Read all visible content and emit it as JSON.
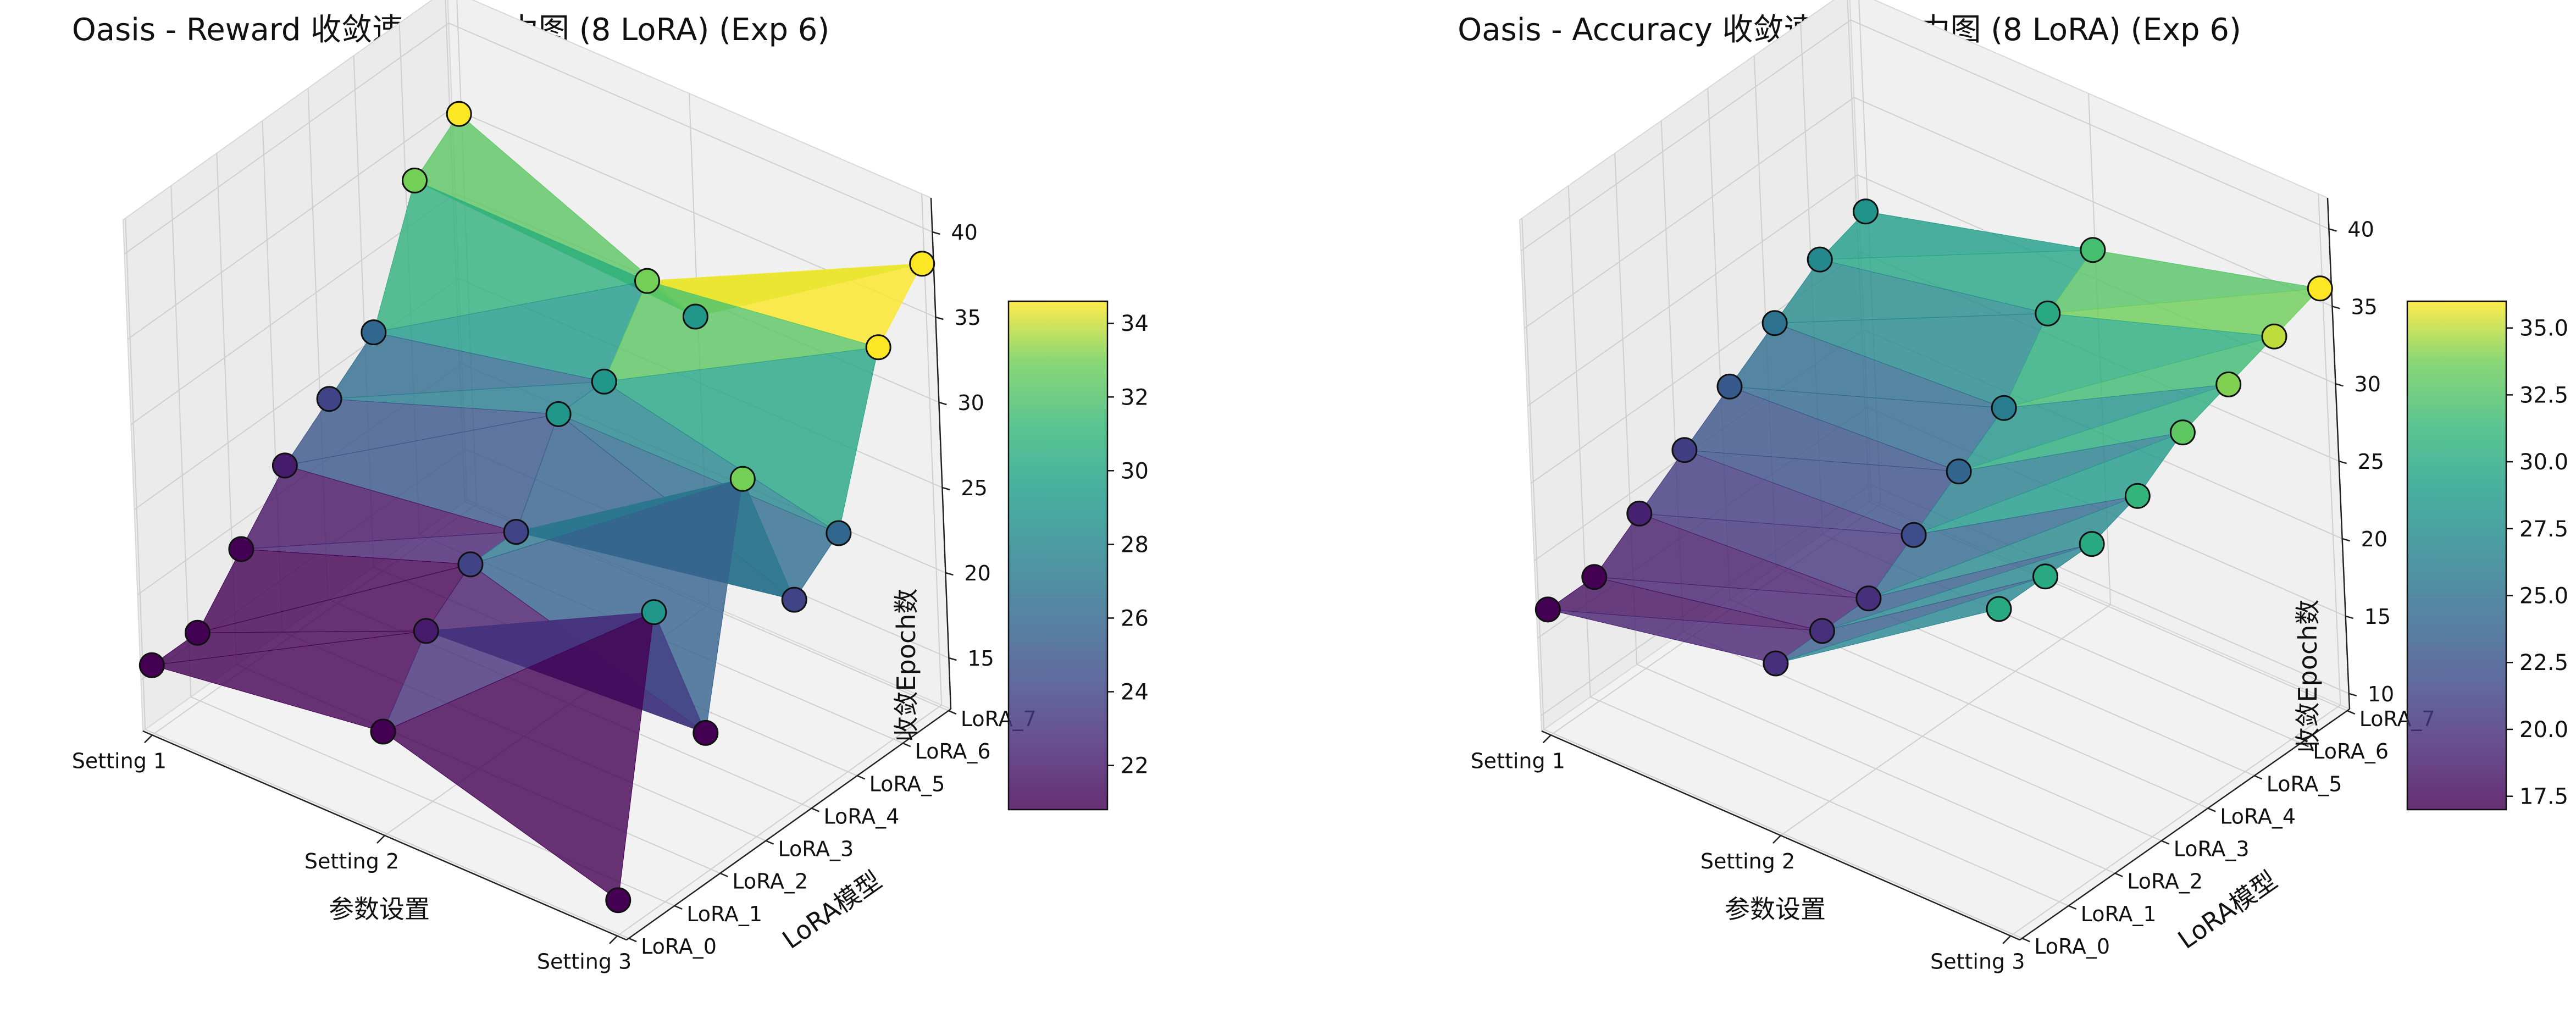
{
  "chart_data": [
    {
      "type": "surface3d",
      "title": "Oasis - Reward 收敛速度3D热力图 (8 LoRA) (Exp 6)",
      "xlabel": "参数设置",
      "ylabel": "LoRA模型",
      "zlabel": "收敛Epoch数",
      "x_categories": [
        "Setting 1",
        "Setting 2",
        "Setting 3"
      ],
      "y_categories": [
        "LoRA_0",
        "LoRA_1",
        "LoRA_2",
        "LoRA_3",
        "LoRA_4",
        "LoRA_5",
        "LoRA_6",
        "LoRA_7"
      ],
      "z_ticks": [
        15,
        20,
        25,
        30,
        35,
        40
      ],
      "zlim": [
        12,
        42
      ],
      "colorbar": {
        "ticks": [
          22,
          24,
          26,
          28,
          30,
          32,
          34
        ],
        "range": [
          20.8,
          34.6
        ],
        "label": "收敛Epoch数"
      },
      "colormap": "viridis",
      "grid": true,
      "z": [
        [
          16,
          16,
          19,
          22,
          24,
          26,
          33,
          35
        ],
        [
          18,
          22,
          24,
          24,
          29,
          29,
          33,
          29
        ],
        [
          14,
          29,
          20,
          33,
          24,
          26,
          35,
          38
        ]
      ]
    },
    {
      "type": "surface3d",
      "title": "Oasis - Accuracy 收敛速度3D热力图 (8 LoRA) (Exp 6)",
      "xlabel": "参数设置",
      "ylabel": "LoRA模型",
      "zlabel": "收敛Epoch数",
      "x_categories": [
        "Setting 1",
        "Setting 2",
        "Setting 3"
      ],
      "y_categories": [
        "LoRA_0",
        "LoRA_1",
        "LoRA_2",
        "LoRA_3",
        "LoRA_4",
        "LoRA_5",
        "LoRA_6",
        "LoRA_7"
      ],
      "z_ticks": [
        10,
        15,
        20,
        25,
        30,
        35,
        40
      ],
      "zlim": [
        9,
        42
      ],
      "colorbar": {
        "ticks": [
          17.5,
          20.0,
          22.5,
          25.0,
          27.5,
          30.0,
          32.5,
          35.0
        ],
        "range": [
          17.0,
          36.0
        ],
        "label": "收敛Epoch数"
      },
      "colormap": "viridis",
      "grid": true,
      "z": [
        [
          17,
          17,
          19,
          21,
          23,
          25,
          27,
          28
        ],
        [
          20,
          20,
          20,
          22,
          24,
          26,
          30,
          32
        ],
        [
          30,
          30,
          30,
          31,
          33,
          34,
          35,
          36
        ]
      ]
    }
  ]
}
